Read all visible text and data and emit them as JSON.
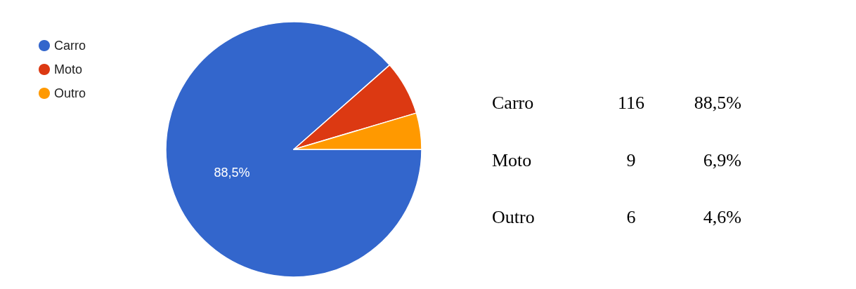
{
  "chart_data": {
    "type": "pie",
    "categories": [
      "Carro",
      "Moto",
      "Outro"
    ],
    "values": [
      88.5,
      6.9,
      4.6
    ],
    "colors": [
      "#3366cc",
      "#dc3912",
      "#ff9900"
    ],
    "value_labels": [
      "88,5%",
      null,
      null
    ],
    "annotations": [
      "116",
      "88,5%",
      "9",
      "6,9%",
      "6",
      "4,6%"
    ],
    "legend": "top left"
  }
}
